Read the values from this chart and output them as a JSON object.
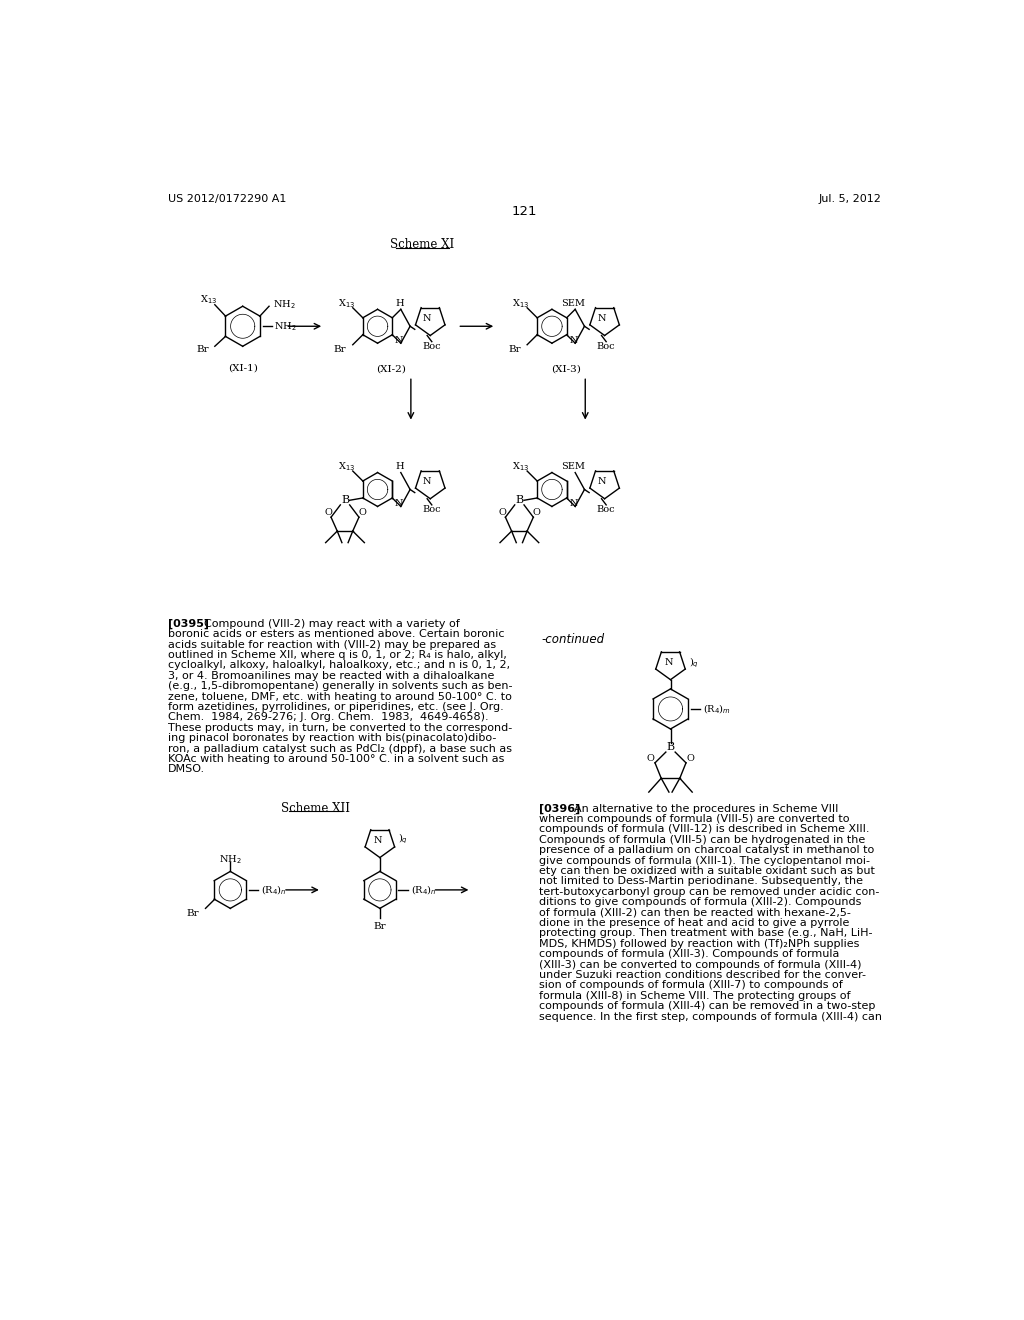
{
  "page_header_left": "US 2012/0172290 A1",
  "page_header_right": "Jul. 5, 2012",
  "page_number": "121",
  "scheme_xi_label": "Scheme XI",
  "scheme_xii_label": "Scheme XII",
  "continued_label": "-continued",
  "background_color": "#ffffff",
  "text_color": "#000000",
  "para_0395_lines": [
    "[0395]  Compound (VIII-2) may react with a variety of",
    "boronic acids or esters as mentioned above. Certain boronic",
    "acids suitable for reaction with (VIII-2) may be prepared as",
    "outlined in Scheme XII, where q is 0, 1, or 2; R₄ is halo, alkyl,",
    "cycloalkyl, alkoxy, haloalkyl, haloalkoxy, etc.; and n is 0, 1, 2,",
    "3, or 4. Bromoanilines may be reacted with a dihaloalkane",
    "(e.g., 1,5-dibromopentane) generally in solvents such as ben-",
    "zene, toluene, DMF, etc. with heating to around 50-100° C. to",
    "form azetidines, pyrrolidines, or piperidines, etc. (see J. Org.",
    "Chem.  1984, 269-276; J. Org. Chem.  1983,  4649-4658).",
    "These products may, in turn, be converted to the correspond-",
    "ing pinacol boronates by reaction with bis(pinacolato)dibo-",
    "ron, a palladium catalyst such as PdCl₂ (dppf), a base such as",
    "KOAc with heating to around 50-100° C. in a solvent such as",
    "DMSO."
  ],
  "para_0396_lines": [
    "[0396]  An alternative to the procedures in Scheme VIII",
    "wherein compounds of formula (VIII-5) are converted to",
    "compounds of formula (VIII-12) is described in Scheme XIII.",
    "Compounds of formula (VIII-5) can be hydrogenated in the",
    "presence of a palladium on charcoal catalyst in methanol to",
    "give compounds of formula (XIII-1). The cyclopentanol moi-",
    "ety can then be oxidized with a suitable oxidant such as but",
    "not limited to Dess-Martin periodinane. Subsequently, the",
    "tert-butoxycarbonyl group can be removed under acidic con-",
    "ditions to give compounds of formula (XIII-2). Compounds",
    "of formula (XIII-2) can then be reacted with hexane-2,5-",
    "dione in the presence of heat and acid to give a pyrrole",
    "protecting group. Then treatment with base (e.g., NaH, LiH-",
    "MDS, KHMDS) followed by reaction with (Tf)₂NPh supplies",
    "compounds of formula (XIII-3). Compounds of formula",
    "(XIII-3) can be converted to compounds of formula (XIII-4)",
    "under Suzuki reaction conditions described for the conver-",
    "sion of compounds of formula (XIII-7) to compounds of",
    "formula (XIII-8) in Scheme VIII. The protecting groups of",
    "compounds of formula (XIII-4) can be removed in a two-step",
    "sequence. In the first step, compounds of formula (XIII-4) can"
  ]
}
